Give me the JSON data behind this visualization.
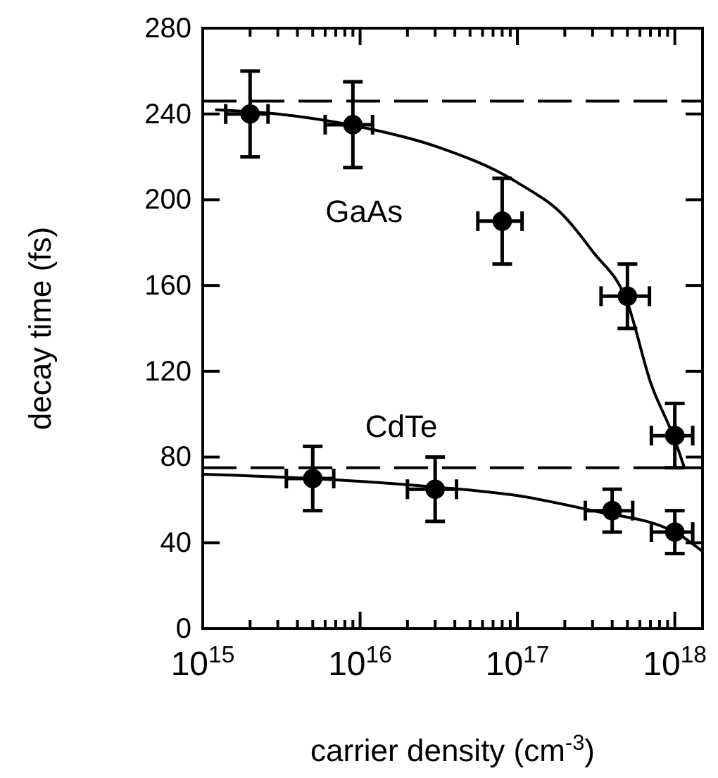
{
  "chart_data": {
    "type": "scatter",
    "xlabel": "carrier density (cm$^{-3}$)",
    "ylabel": "decay time (fs)",
    "log": "x",
    "grid": false,
    "marker": "circle",
    "xlim": [
      1000000000000000.0,
      1.5e+18
    ],
    "xticks": [
      {
        "value": 1000000000000000.0,
        "label": "10$^{15}$"
      },
      {
        "value": 1e+16,
        "label": "10$^{16}$"
      },
      {
        "value": 1e+17,
        "label": "10$^{17}$"
      },
      {
        "value": 1e+18,
        "label": "10$^{18}$"
      }
    ],
    "ylim": [
      0,
      280
    ],
    "yticks": [
      0,
      40,
      80,
      120,
      160,
      200,
      240,
      280
    ],
    "series": [
      {
        "name": "GaAs",
        "color": "#000000",
        "x": [
          2000000000000000.0,
          9000000000000000.0,
          8e+16,
          5e+17,
          1e+18
        ],
        "values": [
          240,
          235,
          190,
          155,
          90
        ],
        "errors": [
          [
            220,
            260
          ],
          [
            215,
            255
          ],
          [
            170,
            210
          ],
          [
            140,
            170
          ],
          [
            75,
            105
          ]
        ],
        "xerrors": [
          [
            1400000000000000.0,
            2600000000000000.0
          ],
          [
            6000000000000000.0,
            1.2e+16
          ],
          [
            5.6e+16,
            1.07e+17
          ],
          [
            3.4e+17,
            6.9e+17
          ],
          [
            7.1e+17,
            1.3e+18
          ]
        ]
      },
      {
        "name": "CdTe",
        "color": "#000000",
        "x": [
          5000000000000000.0,
          3e+16,
          4e+17,
          1e+18
        ],
        "values": [
          70,
          65,
          55,
          45
        ],
        "errors": [
          [
            55,
            85
          ],
          [
            50,
            80
          ],
          [
            45,
            65
          ],
          [
            35,
            55
          ]
        ],
        "xerrors": [
          [
            3400000000000000.0,
            6800000000000000.0
          ],
          [
            2e+16,
            4.1e+16
          ],
          [
            2.7e+17,
            5.4e+17
          ],
          [
            7.1e+17,
            1.3e+18
          ]
        ]
      },
      {
        "type": "line",
        "color": "#000000",
        "marker": "none",
        "line_style": "solid",
        "x": [
          1200000000000000.0,
          3000000000000000.0,
          1e+16,
          3e+16,
          1e+17,
          2e+17,
          3e+17,
          5e+17,
          7e+17,
          1e+18,
          1.15e+18
        ],
        "values": [
          242,
          240,
          234,
          225,
          208,
          192,
          176,
          152,
          115,
          88,
          75
        ]
      },
      {
        "type": "line",
        "color": "#000000",
        "marker": "none",
        "line_style": "solid",
        "x": [
          1000000000000000.0,
          5000000000000000.0,
          3e+16,
          1e+17,
          3e+17,
          1e+18,
          1.5e+18
        ],
        "values": [
          72,
          70,
          66,
          62,
          55,
          45,
          36
        ]
      }
    ],
    "ref_lines": [
      {
        "axis": "y",
        "value": 246,
        "color": "#000000",
        "line_style": "dashed"
      },
      {
        "axis": "y",
        "value": 75,
        "color": "#000000",
        "line_style": "dashed"
      }
    ]
  }
}
